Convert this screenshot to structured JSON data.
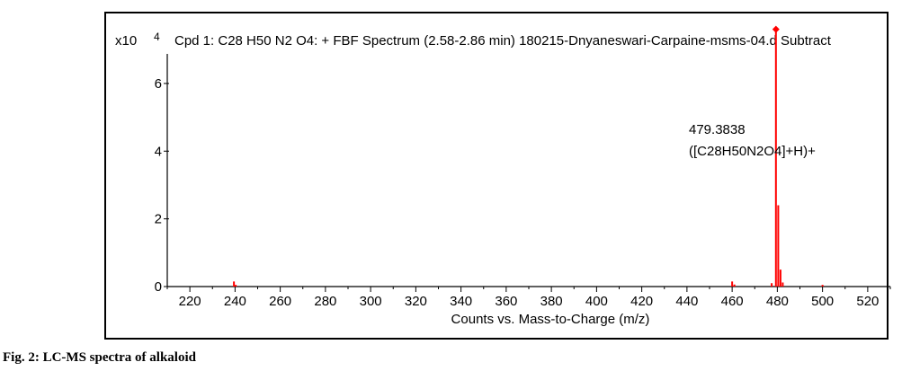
{
  "chart_data": {
    "type": "bar",
    "title": "Cpd 1: C28 H50 N2 O4: + FBF Spectrum (2.58-2.86 min) 180215-Dnyaneswari-Carpaine-msms-04.d  Subtract",
    "xlabel": "Counts vs. Mass-to-Charge (m/z)",
    "ylabel": "",
    "y_multiplier_label": "x10",
    "y_multiplier_exponent": "4",
    "xlim": [
      210,
      530
    ],
    "ylim": [
      0,
      8.2
    ],
    "x_ticks": [
      220,
      240,
      260,
      280,
      300,
      320,
      340,
      360,
      380,
      400,
      420,
      440,
      460,
      480,
      500,
      520
    ],
    "y_ticks": [
      0,
      2,
      4,
      6
    ],
    "series_color": "#ff0000",
    "peaks": [
      {
        "mz": 239.5,
        "intensity": 0.15
      },
      {
        "mz": 240.3,
        "intensity": 0.05
      },
      {
        "mz": 460.0,
        "intensity": 0.15
      },
      {
        "mz": 461.0,
        "intensity": 0.06
      },
      {
        "mz": 477.5,
        "intensity": 0.1
      },
      {
        "mz": 479.38,
        "intensity": 7.6
      },
      {
        "mz": 480.4,
        "intensity": 2.4
      },
      {
        "mz": 481.4,
        "intensity": 0.5
      },
      {
        "mz": 482.4,
        "intensity": 0.12
      },
      {
        "mz": 500.0,
        "intensity": 0.05
      }
    ],
    "marked_peak": {
      "mz": 479.38,
      "intensity": 7.6
    },
    "annotation": {
      "mass": "479.3838",
      "formula": "([C28H50N2O4]+H)+"
    },
    "grid": false
  },
  "caption": "Fig. 2: LC-MS spectra of alkaloid"
}
